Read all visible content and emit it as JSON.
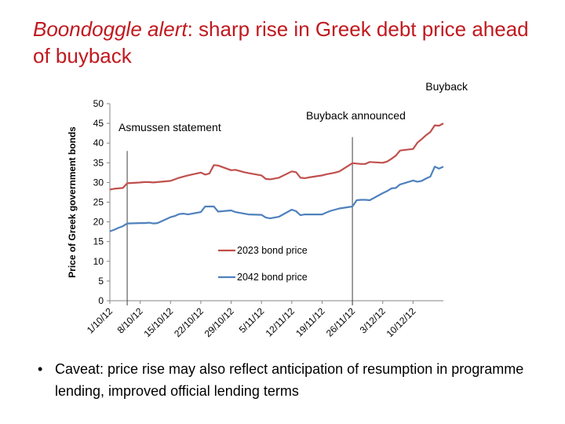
{
  "slide": {
    "title_italic": "Boondoggle alert",
    "title_rest": ": sharp rise in Greek debt price ahead of buyback",
    "bullet": "Caveat: price rise may also reflect anticipation of resumption in programme lending, improved official lending terms",
    "bullet_marker": "•"
  },
  "chart_data": {
    "type": "line",
    "ylabel": "Price of Greek government  bonds",
    "ylim": [
      0,
      50
    ],
    "yticks": [
      0,
      5,
      10,
      15,
      20,
      25,
      30,
      35,
      40,
      45,
      50
    ],
    "xlim": [
      "2012-10-01",
      "2012-12-17"
    ],
    "xticks": [
      "1/10/12",
      "8/10/12",
      "15/10/12",
      "22/10/12",
      "29/10/12",
      "5/11/12",
      "12/11/12",
      "19/11/12",
      "26/11/12",
      "3/12/12",
      "10/12/12"
    ],
    "legend_position": "inside-lower-middle",
    "annotations": [
      {
        "label": "Asmussen statement",
        "x": "2012-10-05"
      },
      {
        "label": "Buyback announced",
        "x": "2012-11-26"
      },
      {
        "label": "Buyback",
        "x": ""
      }
    ],
    "series": [
      {
        "name": "2023 bond price",
        "color": "#c0504d",
        "x": [
          "2012-10-01",
          "2012-10-02",
          "2012-10-03",
          "2012-10-04",
          "2012-10-05",
          "2012-10-08",
          "2012-10-09",
          "2012-10-10",
          "2012-10-11",
          "2012-10-12",
          "2012-10-15",
          "2012-10-16",
          "2012-10-17",
          "2012-10-18",
          "2012-10-19",
          "2012-10-22",
          "2012-10-23",
          "2012-10-24",
          "2012-10-25",
          "2012-10-26",
          "2012-10-29",
          "2012-10-30",
          "2012-10-31",
          "2012-11-01",
          "2012-11-02",
          "2012-11-05",
          "2012-11-06",
          "2012-11-07",
          "2012-11-08",
          "2012-11-09",
          "2012-11-12",
          "2012-11-13",
          "2012-11-14",
          "2012-11-15",
          "2012-11-16",
          "2012-11-19",
          "2012-11-20",
          "2012-11-21",
          "2012-11-22",
          "2012-11-23",
          "2012-11-26",
          "2012-11-27",
          "2012-11-28",
          "2012-11-29",
          "2012-11-30",
          "2012-12-03",
          "2012-12-04",
          "2012-12-05",
          "2012-12-06",
          "2012-12-07",
          "2012-12-10",
          "2012-12-11",
          "2012-12-12",
          "2012-12-13",
          "2012-12-14"
        ],
        "values": [
          28.2,
          28.4,
          28.5,
          28.6,
          29.8,
          30.0,
          30.1,
          30.1,
          30.0,
          30.1,
          30.4,
          30.8,
          31.2,
          31.5,
          31.8,
          32.5,
          32.0,
          32.3,
          34.4,
          34.3,
          33.1,
          33.2,
          32.9,
          32.6,
          32.4,
          31.8,
          30.9,
          30.8,
          31.0,
          31.2,
          32.8,
          32.6,
          31.2,
          31.1,
          31.3,
          31.8,
          32.1,
          32.3,
          32.5,
          32.8,
          34.9,
          34.8,
          34.7,
          34.7,
          35.2,
          35.0,
          35.3,
          36.0,
          36.8,
          38.1,
          38.5,
          40.1,
          41.0,
          42.0,
          42.8
        ],
        "extra_points": [
          {
            "x": "2012-12-15",
            "y": 44.5
          },
          {
            "x": "2012-12-16",
            "y": 44.4
          },
          {
            "x": "2012-12-17",
            "y": 45.0
          }
        ]
      },
      {
        "name": "2042 bond price",
        "color": "#4f81bd",
        "x": [
          "2012-10-01",
          "2012-10-02",
          "2012-10-03",
          "2012-10-04",
          "2012-10-05",
          "2012-10-08",
          "2012-10-09",
          "2012-10-10",
          "2012-10-11",
          "2012-10-12",
          "2012-10-15",
          "2012-10-16",
          "2012-10-17",
          "2012-10-18",
          "2012-10-19",
          "2012-10-22",
          "2012-10-23",
          "2012-10-24",
          "2012-10-25",
          "2012-10-26",
          "2012-10-29",
          "2012-10-30",
          "2012-10-31",
          "2012-11-01",
          "2012-11-02",
          "2012-11-05",
          "2012-11-06",
          "2012-11-07",
          "2012-11-08",
          "2012-11-09",
          "2012-11-12",
          "2012-11-13",
          "2012-11-14",
          "2012-11-15",
          "2012-11-16",
          "2012-11-19",
          "2012-11-20",
          "2012-11-21",
          "2012-11-22",
          "2012-11-23",
          "2012-11-26",
          "2012-11-27",
          "2012-11-28",
          "2012-11-29",
          "2012-11-30",
          "2012-12-03",
          "2012-12-04",
          "2012-12-05",
          "2012-12-06",
          "2012-12-07",
          "2012-12-10",
          "2012-12-11",
          "2012-12-12",
          "2012-12-13",
          "2012-12-14"
        ],
        "values": [
          17.6,
          18.0,
          18.5,
          18.9,
          19.6,
          19.7,
          19.7,
          19.8,
          19.6,
          19.7,
          21.2,
          21.5,
          22.0,
          22.1,
          21.9,
          22.5,
          23.9,
          23.9,
          23.9,
          22.6,
          22.9,
          22.5,
          22.3,
          22.1,
          21.9,
          21.8,
          21.1,
          20.9,
          21.1,
          21.3,
          23.1,
          22.7,
          21.7,
          21.9,
          21.9,
          21.9,
          22.4,
          22.8,
          23.1,
          23.4,
          23.9,
          25.5,
          25.6,
          25.6,
          25.5,
          27.3,
          27.8,
          28.5,
          28.6,
          29.5,
          30.5,
          30.2,
          30.4,
          31.0,
          31.5
        ],
        "extra_points": [
          {
            "x": "2012-12-15",
            "y": 34.0
          },
          {
            "x": "2012-12-16",
            "y": 33.5
          },
          {
            "x": "2012-12-17",
            "y": 34.0
          }
        ]
      }
    ]
  }
}
